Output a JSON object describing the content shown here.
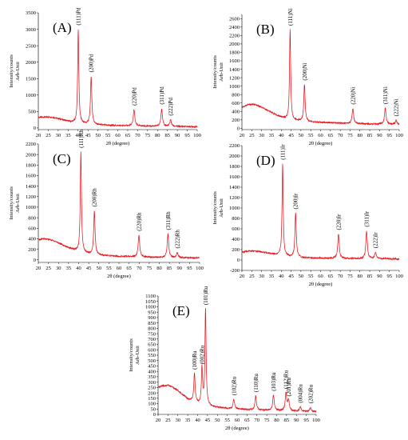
{
  "chart_data": [
    {
      "id": "A",
      "type": "line",
      "panel_label": "(A)",
      "xlabel": "2θ (degree)",
      "ylabel": [
        "Intensity/counts",
        "Arb-Unit"
      ],
      "xlim": [
        20,
        100
      ],
      "ylim": [
        -50,
        3500
      ],
      "xticks": [
        20,
        25,
        30,
        35,
        40,
        45,
        50,
        55,
        60,
        65,
        70,
        75,
        80,
        85,
        90,
        95,
        100
      ],
      "yticks": [
        0,
        500,
        1000,
        1500,
        2000,
        2500,
        3000,
        3500
      ],
      "line_color": "#e8141b",
      "background": [
        [
          20,
          320
        ],
        [
          23,
          330
        ],
        [
          26,
          330
        ],
        [
          29,
          300
        ],
        [
          32,
          250
        ],
        [
          35,
          200
        ],
        [
          37,
          170
        ],
        [
          40,
          140
        ],
        [
          45,
          115
        ],
        [
          50,
          95
        ],
        [
          55,
          80
        ],
        [
          60,
          70
        ],
        [
          70,
          60
        ],
        [
          80,
          50
        ],
        [
          90,
          45
        ],
        [
          100,
          40
        ]
      ],
      "peaks": [
        {
          "label": "(111)Pd",
          "x": 40.1,
          "y": 3000,
          "width": 0.35
        },
        {
          "label": "(200)Pd",
          "x": 46.6,
          "y": 1570,
          "width": 0.4
        },
        {
          "label": "(220)Pd",
          "x": 68.2,
          "y": 560,
          "width": 0.45
        },
        {
          "label": "(311)Pd",
          "x": 82.1,
          "y": 590,
          "width": 0.45
        },
        {
          "label": "(222)Pd",
          "x": 86.6,
          "y": 250,
          "width": 0.45
        }
      ]
    },
    {
      "id": "B",
      "type": "line",
      "panel_label": "(B)",
      "xlabel": "2θ (degree)",
      "ylabel": [
        "Intensity/counts",
        "Arb-Unit"
      ],
      "xlim": [
        20,
        100
      ],
      "ylim": [
        -30,
        2700
      ],
      "xticks": [
        20,
        25,
        30,
        35,
        40,
        45,
        50,
        55,
        60,
        65,
        70,
        75,
        80,
        85,
        90,
        95,
        100
      ],
      "yticks": [
        0,
        200,
        400,
        600,
        800,
        1000,
        1200,
        1400,
        1600,
        1800,
        2000,
        2200,
        2400,
        2600
      ],
      "line_color": "#e8141b",
      "background": [
        [
          20,
          500
        ],
        [
          23,
          560
        ],
        [
          26,
          570
        ],
        [
          29,
          520
        ],
        [
          32,
          450
        ],
        [
          35,
          380
        ],
        [
          38,
          300
        ],
        [
          41,
          250
        ],
        [
          44,
          200
        ],
        [
          50,
          170
        ],
        [
          55,
          150
        ],
        [
          60,
          140
        ],
        [
          70,
          125
        ],
        [
          80,
          110
        ],
        [
          90,
          100
        ],
        [
          100,
          95
        ]
      ],
      "peaks": [
        {
          "label": "(111)Ni",
          "x": 44.5,
          "y": 2340,
          "width": 0.35
        },
        {
          "label": "(200)Ni",
          "x": 51.8,
          "y": 1040,
          "width": 0.4
        },
        {
          "label": "(220)Ni",
          "x": 76.4,
          "y": 470,
          "width": 0.45
        },
        {
          "label": "(311)Ni",
          "x": 92.9,
          "y": 480,
          "width": 0.45
        },
        {
          "label": "(222)Ni",
          "x": 98.4,
          "y": 190,
          "width": 0.45
        }
      ]
    },
    {
      "id": "C",
      "type": "line",
      "panel_label": "(C)",
      "xlabel": "2θ (degree)",
      "ylabel": [
        "Intensity/counts",
        "Arb-Unit"
      ],
      "xlim": [
        20,
        100
      ],
      "ylim": [
        -50,
        2200
      ],
      "xticks": [
        20,
        25,
        30,
        35,
        40,
        45,
        50,
        55,
        60,
        65,
        70,
        75,
        80,
        85,
        90,
        95,
        100
      ],
      "yticks": [
        0,
        200,
        400,
        600,
        800,
        1000,
        1200,
        1400,
        1600,
        1800,
        2000,
        2200
      ],
      "line_color": "#e8141b",
      "background": [
        [
          20,
          380
        ],
        [
          23,
          400
        ],
        [
          26,
          380
        ],
        [
          29,
          340
        ],
        [
          32,
          280
        ],
        [
          35,
          230
        ],
        [
          38,
          180
        ],
        [
          41,
          140
        ],
        [
          45,
          110
        ],
        [
          50,
          90
        ],
        [
          55,
          75
        ],
        [
          60,
          65
        ],
        [
          70,
          55
        ],
        [
          80,
          45
        ],
        [
          90,
          40
        ],
        [
          100,
          35
        ]
      ],
      "peaks": [
        {
          "label": "(111)Rh",
          "x": 41.1,
          "y": 2050,
          "width": 0.35
        },
        {
          "label": "(200)Rh",
          "x": 47.8,
          "y": 930,
          "width": 0.4
        },
        {
          "label": "(220)Rh",
          "x": 69.9,
          "y": 470,
          "width": 0.45
        },
        {
          "label": "(311)Rh",
          "x": 84.3,
          "y": 490,
          "width": 0.45
        },
        {
          "label": "(222)Rh",
          "x": 88.9,
          "y": 140,
          "width": 0.45
        }
      ]
    },
    {
      "id": "D",
      "type": "line",
      "panel_label": "(D)",
      "xlabel": "2θ (degree)",
      "ylabel": [
        "Intensity/counts",
        "Arb-Unit"
      ],
      "xlim": [
        20,
        100
      ],
      "ylim": [
        -200,
        2200
      ],
      "xticks": [
        20,
        25,
        30,
        35,
        40,
        45,
        50,
        55,
        60,
        65,
        70,
        75,
        80,
        85,
        90,
        95,
        100
      ],
      "yticks": [
        -200,
        0,
        200,
        400,
        600,
        800,
        1000,
        1200,
        1400,
        1600,
        1800,
        2000,
        2200
      ],
      "line_color": "#e8141b",
      "background": [
        [
          20,
          150
        ],
        [
          23,
          170
        ],
        [
          26,
          170
        ],
        [
          29,
          160
        ],
        [
          32,
          140
        ],
        [
          35,
          120
        ],
        [
          38,
          95
        ],
        [
          41,
          75
        ],
        [
          45,
          60
        ],
        [
          50,
          45
        ],
        [
          55,
          40
        ],
        [
          60,
          35
        ],
        [
          70,
          30
        ],
        [
          80,
          25
        ],
        [
          90,
          25
        ],
        [
          100,
          20
        ]
      ],
      "peaks": [
        {
          "label": "(111)Ir",
          "x": 40.7,
          "y": 1850,
          "width": 0.35
        },
        {
          "label": "(200)Ir",
          "x": 47.3,
          "y": 900,
          "width": 0.4
        },
        {
          "label": "(220)Ir",
          "x": 69.1,
          "y": 500,
          "width": 0.45
        },
        {
          "label": "(311)Ir",
          "x": 83.4,
          "y": 560,
          "width": 0.45
        },
        {
          "label": "(222)Ir",
          "x": 87.9,
          "y": 150,
          "width": 0.45
        }
      ]
    },
    {
      "id": "E",
      "type": "line",
      "panel_label": "(E)",
      "xlabel": "2θ (degree)",
      "ylabel": [
        "Intensity/counts",
        "Arb-Unit"
      ],
      "xlim": [
        20,
        100
      ],
      "ylim": [
        0,
        1100
      ],
      "xticks": [
        20,
        25,
        30,
        35,
        40,
        45,
        50,
        55,
        60,
        65,
        70,
        75,
        80,
        85,
        90,
        95,
        100
      ],
      "yticks": [
        0,
        50,
        100,
        150,
        200,
        250,
        300,
        350,
        400,
        450,
        500,
        550,
        600,
        650,
        700,
        750,
        800,
        850,
        900,
        950,
        1000,
        1050,
        1100
      ],
      "line_color": "#e8141b",
      "background": [
        [
          20,
          250
        ],
        [
          22,
          265
        ],
        [
          25,
          270
        ],
        [
          27,
          255
        ],
        [
          30,
          220
        ],
        [
          33,
          175
        ],
        [
          35,
          140
        ],
        [
          38,
          115
        ],
        [
          41,
          95
        ],
        [
          45,
          80
        ],
        [
          50,
          65
        ],
        [
          55,
          55
        ],
        [
          60,
          50
        ],
        [
          70,
          40
        ],
        [
          80,
          35
        ],
        [
          90,
          30
        ],
        [
          100,
          25
        ]
      ],
      "peaks": [
        {
          "label": "(100)Ru",
          "x": 38.4,
          "y": 380,
          "width": 0.4
        },
        {
          "label": "(002)Ru",
          "x": 42.2,
          "y": 430,
          "width": 0.35
        },
        {
          "label": "(101)Ru",
          "x": 44.0,
          "y": 980,
          "width": 0.35
        },
        {
          "label": "(102)Ru",
          "x": 58.3,
          "y": 140,
          "width": 0.45
        },
        {
          "label": "(110)Ru",
          "x": 69.4,
          "y": 170,
          "width": 0.45
        },
        {
          "label": "(103)Ru",
          "x": 78.4,
          "y": 180,
          "width": 0.45
        },
        {
          "label": "(112)Ru",
          "x": 84.7,
          "y": 200,
          "width": 0.45
        },
        {
          "label": "(201)Ru",
          "x": 86.0,
          "y": 130,
          "width": 0.45
        },
        {
          "label": "(004)Ru",
          "x": 92.0,
          "y": 70,
          "width": 0.45
        },
        {
          "label": "(202)Ru",
          "x": 97.1,
          "y": 65,
          "width": 0.45
        }
      ]
    }
  ]
}
